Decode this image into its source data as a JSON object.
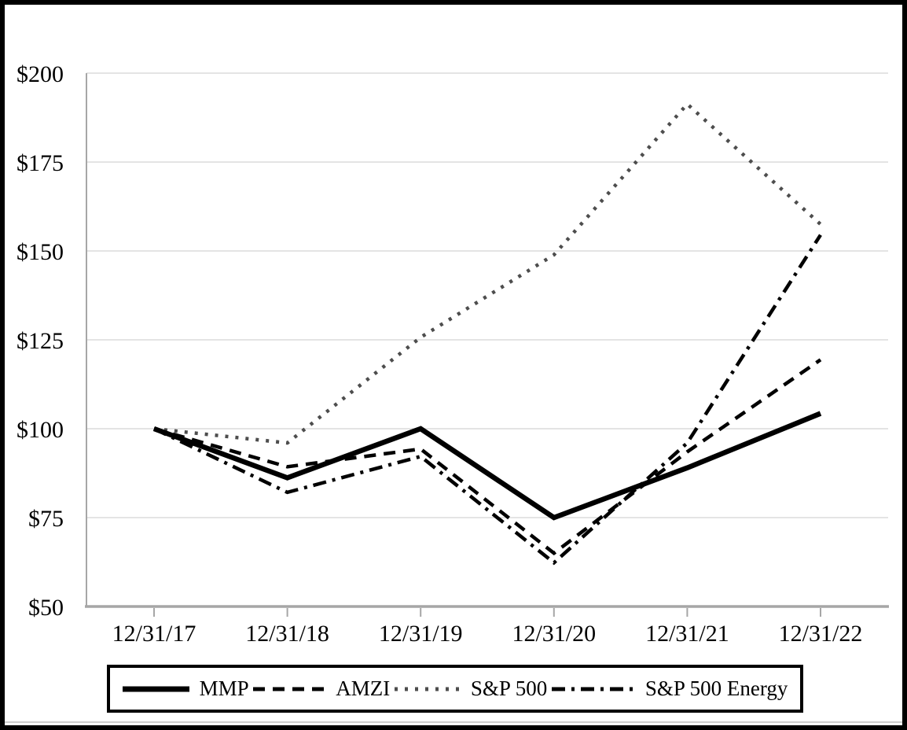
{
  "chart_data": {
    "type": "line",
    "title": "",
    "x_categories": [
      "12/31/17",
      "12/31/18",
      "12/31/19",
      "12/31/20",
      "12/31/21",
      "12/31/22"
    ],
    "y_tick_labels": [
      "$200",
      "$175",
      "$150",
      "$125",
      "$100",
      "$75",
      "$50"
    ],
    "y_tick_values": [
      200,
      175,
      150,
      125,
      100,
      75,
      50
    ],
    "ylim": [
      50,
      200
    ],
    "xlabel": "",
    "ylabel": "",
    "grid": "horizontal",
    "legend_position": "bottom-box",
    "series": [
      {
        "name": "MMP",
        "line_style": "solid",
        "color": "#000000",
        "values": [
          100,
          86.2,
          100.0,
          75.0,
          89.0,
          104.3
        ]
      },
      {
        "name": "AMZI",
        "line_style": "dashed",
        "color": "#000000",
        "values": [
          100,
          89.3,
          94.3,
          65.0,
          93.5,
          119.4
        ]
      },
      {
        "name": "S&P 500",
        "line_style": "dotted",
        "color": "#4d4d4d",
        "values": [
          100,
          96.0,
          125.7,
          148.9,
          191.3,
          157.5
        ]
      },
      {
        "name": "S&P 500 Energy",
        "line_style": "dashdot",
        "color": "#000000",
        "values": [
          100,
          82.1,
          92.2,
          62.3,
          96.0,
          154.5
        ]
      }
    ]
  },
  "colors": {
    "background": "#ffffff",
    "frame_border": "#000000",
    "grid": "#dcdcdc",
    "axis": "#a6a6a6",
    "legend_border": "#000000",
    "line_black": "#000000",
    "line_gray": "#4d4d4d",
    "footer_rule": "#bdbdbd"
  }
}
